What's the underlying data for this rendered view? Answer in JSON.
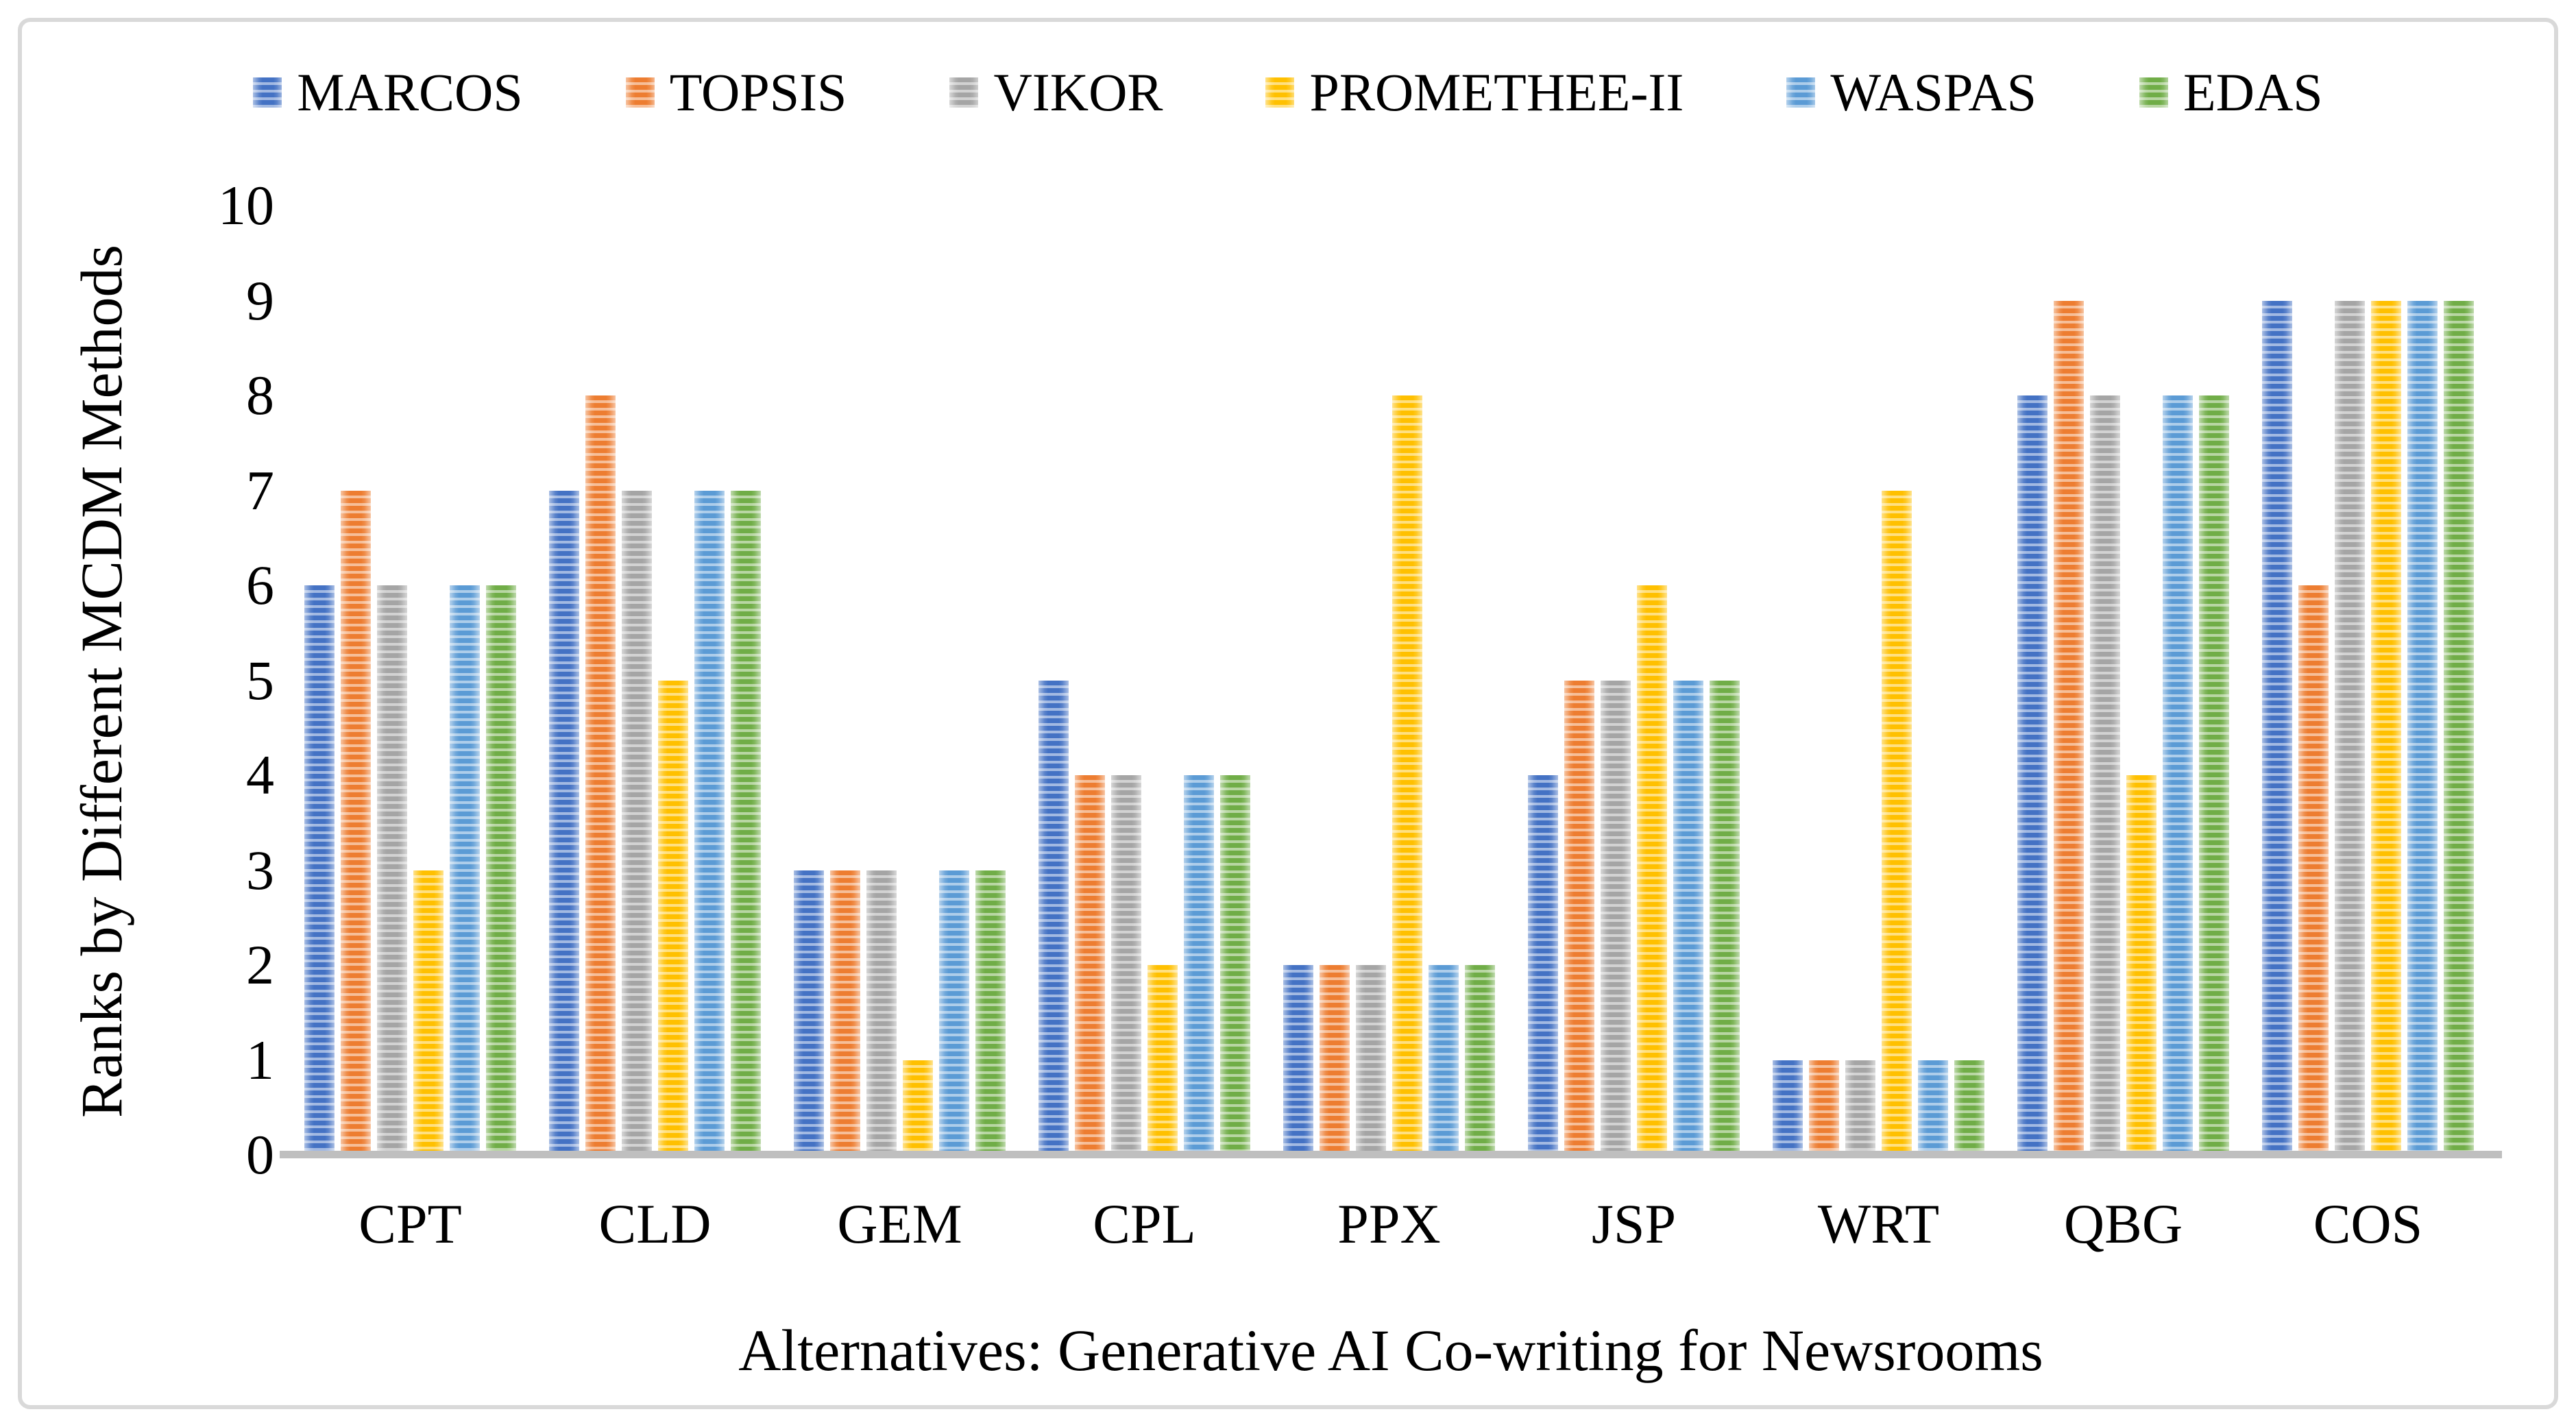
{
  "chart_data": {
    "type": "bar",
    "title": "",
    "xlabel": "Alternatives: Generative AI Co-writing for Newsrooms",
    "ylabel": "Ranks by Different MCDM Methods",
    "ylim": [
      0,
      10
    ],
    "yticks": [
      0,
      1,
      2,
      3,
      4,
      5,
      6,
      7,
      8,
      9,
      10
    ],
    "grid": false,
    "legend_position": "top",
    "bar_pattern": "horizontal-stripes",
    "categories": [
      "CPT",
      "CLD",
      "GEM",
      "CPL",
      "PPX",
      "JSP",
      "WRT",
      "QBG",
      "COS"
    ],
    "series": [
      {
        "name": "MARCOS",
        "color": "#4472C4",
        "light": "#A2B9E2",
        "values": [
          6,
          7,
          3,
          5,
          2,
          4,
          1,
          8,
          9
        ]
      },
      {
        "name": "TOPSIS",
        "color": "#ED7D31",
        "light": "#F6BE98",
        "values": [
          7,
          8,
          3,
          4,
          2,
          5,
          1,
          9,
          6
        ]
      },
      {
        "name": "VIKOR",
        "color": "#A5A5A5",
        "light": "#D2D2D2",
        "values": [
          6,
          7,
          3,
          4,
          2,
          5,
          1,
          8,
          9
        ]
      },
      {
        "name": "PROMETHEE-II",
        "color": "#FFC000",
        "light": "#FFE080",
        "values": [
          3,
          5,
          1,
          2,
          8,
          6,
          7,
          4,
          9
        ]
      },
      {
        "name": "WASPAS",
        "color": "#5B9BD5",
        "light": "#ADCDEA",
        "values": [
          6,
          7,
          3,
          4,
          2,
          5,
          1,
          8,
          9
        ]
      },
      {
        "name": "EDAS",
        "color": "#70AD47",
        "light": "#B8D6A3",
        "values": [
          6,
          7,
          3,
          4,
          2,
          5,
          1,
          8,
          9
        ]
      }
    ],
    "axis_line_color": "#BFBFBF",
    "frame_border_color": "#D9D9D9",
    "text_color": "#000000"
  }
}
